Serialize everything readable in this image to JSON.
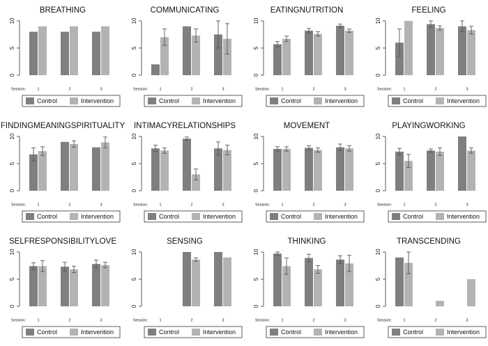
{
  "chart_data": [
    {
      "type": "bar",
      "title": "BREATHING",
      "x_label": "Session:",
      "categories": [
        "1",
        "2",
        "3"
      ],
      "ylim": [
        0,
        10
      ],
      "yticks": [
        0,
        5,
        10
      ],
      "series": [
        {
          "name": "Control",
          "color": "#7f7f7f",
          "values": [
            8,
            8,
            8
          ]
        },
        {
          "name": "Intervention",
          "color": "#b3b3b3",
          "values": [
            9,
            9,
            9
          ]
        }
      ]
    },
    {
      "type": "bar",
      "title": "COMMUNICATING",
      "x_label": "Session:",
      "categories": [
        "1",
        "2",
        "3"
      ],
      "ylim": [
        0,
        10
      ],
      "yticks": [
        0,
        5,
        10
      ],
      "series": [
        {
          "name": "Control",
          "color": "#7f7f7f",
          "values": [
            2,
            9,
            7.5
          ],
          "errors": [
            null,
            null,
            2.5
          ]
        },
        {
          "name": "Intervention",
          "color": "#b3b3b3",
          "values": [
            7,
            7.3,
            6.7
          ],
          "errors": [
            1.5,
            1.2,
            2.8
          ]
        }
      ]
    },
    {
      "type": "bar",
      "title": "EATINGNUTRITION",
      "x_label": "Session:",
      "categories": [
        "1",
        "2",
        "3"
      ],
      "ylim": [
        0,
        10
      ],
      "yticks": [
        0,
        5,
        10
      ],
      "series": [
        {
          "name": "Control",
          "color": "#7f7f7f",
          "values": [
            5.7,
            8.2,
            9.1
          ],
          "errors": [
            0.5,
            0.4,
            0.3
          ]
        },
        {
          "name": "Intervention",
          "color": "#b3b3b3",
          "values": [
            6.7,
            7.6,
            8.2
          ],
          "errors": [
            0.5,
            0.4,
            0.3
          ]
        }
      ]
    },
    {
      "type": "bar",
      "title": "FEELING",
      "x_label": "Session:",
      "categories": [
        "1",
        "2",
        "3"
      ],
      "ylim": [
        0,
        10
      ],
      "yticks": [
        0,
        5,
        10
      ],
      "series": [
        {
          "name": "Control",
          "color": "#7f7f7f",
          "values": [
            6,
            9.4,
            9
          ],
          "errors": [
            2.5,
            0.6,
            1
          ]
        },
        {
          "name": "Intervention",
          "color": "#b3b3b3",
          "values": [
            10,
            8.7,
            8.3
          ],
          "errors": [
            null,
            0.4,
            0.7
          ]
        }
      ]
    },
    {
      "type": "bar",
      "title": "FINDINGMEANINGSPIRITUALITY",
      "x_label": "Session:",
      "categories": [
        "1",
        "2",
        "3"
      ],
      "ylim": [
        0,
        10
      ],
      "yticks": [
        0,
        5,
        10
      ],
      "series": [
        {
          "name": "Control",
          "color": "#7f7f7f",
          "values": [
            6.7,
            9,
            8
          ],
          "errors": [
            1.2,
            null,
            null
          ]
        },
        {
          "name": "Intervention",
          "color": "#b3b3b3",
          "values": [
            7.3,
            8.6,
            8.9
          ],
          "errors": [
            0.8,
            0.6,
            1
          ]
        }
      ]
    },
    {
      "type": "bar",
      "title": "INTIMACYRELATIONSHIPS",
      "x_label": "Session:",
      "categories": [
        "1",
        "2",
        "3"
      ],
      "ylim": [
        0,
        10
      ],
      "yticks": [
        0,
        5,
        10
      ],
      "series": [
        {
          "name": "Control",
          "color": "#7f7f7f",
          "values": [
            7.8,
            9.6,
            7.8
          ],
          "errors": [
            0.6,
            0.3,
            1.2
          ]
        },
        {
          "name": "Intervention",
          "color": "#b3b3b3",
          "values": [
            7.4,
            3,
            7.5
          ],
          "errors": [
            0.5,
            1,
            0.9
          ]
        }
      ]
    },
    {
      "type": "bar",
      "title": "MOVEMENT",
      "x_label": "Session:",
      "categories": [
        "1",
        "2",
        "3"
      ],
      "ylim": [
        0,
        10
      ],
      "yticks": [
        0,
        5,
        10
      ],
      "series": [
        {
          "name": "Control",
          "color": "#7f7f7f",
          "values": [
            7.7,
            7.9,
            8
          ],
          "errors": [
            0.4,
            0.4,
            0.6
          ]
        },
        {
          "name": "Intervention",
          "color": "#b3b3b3",
          "values": [
            7.7,
            7.5,
            7.8
          ],
          "errors": [
            0.4,
            0.4,
            0.5
          ]
        }
      ]
    },
    {
      "type": "bar",
      "title": "PLAYINGWORKING",
      "x_label": "Session:",
      "categories": [
        "1",
        "2",
        "3"
      ],
      "ylim": [
        0,
        10
      ],
      "yticks": [
        0,
        5,
        10
      ],
      "series": [
        {
          "name": "Control",
          "color": "#7f7f7f",
          "values": [
            7.2,
            7.4,
            10
          ],
          "errors": [
            0.6,
            0.3,
            null
          ]
        },
        {
          "name": "Intervention",
          "color": "#b3b3b3",
          "values": [
            5.5,
            7.2,
            7.4
          ],
          "errors": [
            1.2,
            0.7,
            0.5
          ]
        }
      ]
    },
    {
      "type": "bar",
      "title": "SELFRESPONSIBILITYLOVE",
      "x_label": "Session:",
      "categories": [
        "1",
        "2",
        "3"
      ],
      "ylim": [
        0,
        10
      ],
      "yticks": [
        0,
        5,
        10
      ],
      "series": [
        {
          "name": "Control",
          "color": "#7f7f7f",
          "values": [
            7.4,
            7.3,
            7.8
          ],
          "errors": [
            0.6,
            0.8,
            0.7
          ]
        },
        {
          "name": "Intervention",
          "color": "#b3b3b3",
          "values": [
            7.4,
            6.8,
            7.6
          ],
          "errors": [
            1,
            0.6,
            0.5
          ]
        }
      ]
    },
    {
      "type": "bar",
      "title": "SENSING",
      "x_label": "Session:",
      "categories": [
        "1",
        "2",
        "3"
      ],
      "ylim": [
        0,
        10
      ],
      "yticks": [
        0,
        5,
        10
      ],
      "series": [
        {
          "name": "Control",
          "color": "#7f7f7f",
          "values": [
            null,
            10,
            10
          ]
        },
        {
          "name": "Intervention",
          "color": "#b3b3b3",
          "values": [
            null,
            8.6,
            9
          ],
          "errors": [
            null,
            0.3,
            null
          ]
        }
      ]
    },
    {
      "type": "bar",
      "title": "THINKING",
      "x_label": "Session:",
      "categories": [
        "1",
        "2",
        "3"
      ],
      "ylim": [
        0,
        10
      ],
      "yticks": [
        0,
        5,
        10
      ],
      "series": [
        {
          "name": "Control",
          "color": "#7f7f7f",
          "values": [
            9.7,
            8.9,
            8.6
          ],
          "errors": [
            0.3,
            0.7,
            0.7
          ]
        },
        {
          "name": "Intervention",
          "color": "#b3b3b3",
          "values": [
            7.4,
            6.8,
            7.9
          ],
          "errors": [
            1.5,
            0.7,
            1.5
          ]
        }
      ]
    },
    {
      "type": "bar",
      "title": "TRANSCENDING",
      "x_label": "Session:",
      "categories": [
        "1",
        "2",
        "3"
      ],
      "ylim": [
        0,
        10
      ],
      "yticks": [
        0,
        5,
        10
      ],
      "series": [
        {
          "name": "Control",
          "color": "#7f7f7f",
          "values": [
            9,
            null,
            null
          ]
        },
        {
          "name": "Intervention",
          "color": "#b3b3b3",
          "values": [
            8,
            1,
            5
          ],
          "errors": [
            2,
            null,
            null
          ]
        }
      ]
    }
  ]
}
